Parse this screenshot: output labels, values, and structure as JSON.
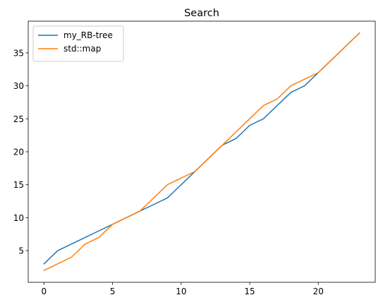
{
  "chart_data": {
    "type": "line",
    "title": "Search",
    "xlabel": "",
    "ylabel": "",
    "xlim": [
      -1.15,
      24.15
    ],
    "ylim": [
      0.2,
      39.8
    ],
    "xticks": [
      0,
      5,
      10,
      15,
      20
    ],
    "yticks": [
      5,
      10,
      15,
      20,
      25,
      30,
      35
    ],
    "grid": false,
    "legend_position": "top-left",
    "series": [
      {
        "name": "my_RB-tree",
        "color": "#1f77b4",
        "points": [
          [
            0,
            3
          ],
          [
            1,
            5
          ],
          [
            2,
            6
          ],
          [
            3,
            7
          ],
          [
            4,
            8
          ],
          [
            5,
            9
          ],
          [
            6,
            10
          ],
          [
            7,
            11
          ],
          [
            8,
            12
          ],
          [
            9,
            13
          ],
          [
            10,
            15
          ],
          [
            11,
            17
          ],
          [
            12,
            19
          ],
          [
            13,
            21
          ],
          [
            14,
            22
          ],
          [
            15,
            24
          ],
          [
            16,
            25
          ],
          [
            17,
            27
          ],
          [
            18,
            29
          ],
          [
            19,
            30
          ],
          [
            20,
            32
          ],
          [
            21,
            34
          ],
          [
            22,
            36
          ],
          [
            23,
            38
          ]
        ]
      },
      {
        "name": "std::map",
        "color": "#ff7f0e",
        "points": [
          [
            0,
            2
          ],
          [
            1,
            3
          ],
          [
            2,
            4
          ],
          [
            3,
            6
          ],
          [
            4,
            7
          ],
          [
            5,
            9
          ],
          [
            6,
            10
          ],
          [
            7,
            11
          ],
          [
            8,
            13
          ],
          [
            9,
            15
          ],
          [
            10,
            16
          ],
          [
            11,
            17
          ],
          [
            12,
            19
          ],
          [
            13,
            21
          ],
          [
            14,
            23
          ],
          [
            15,
            25
          ],
          [
            16,
            27
          ],
          [
            17,
            28
          ],
          [
            18,
            30
          ],
          [
            19,
            31
          ],
          [
            20,
            32
          ],
          [
            21,
            34
          ],
          [
            22,
            36
          ],
          [
            23,
            38
          ]
        ]
      }
    ]
  }
}
